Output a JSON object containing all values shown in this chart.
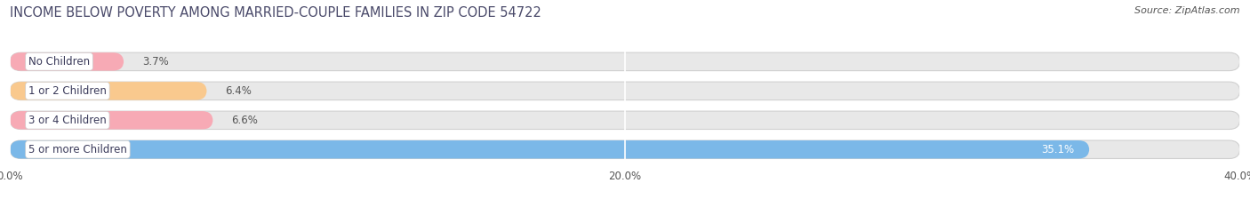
{
  "title": "INCOME BELOW POVERTY AMONG MARRIED-COUPLE FAMILIES IN ZIP CODE 54722",
  "source": "Source: ZipAtlas.com",
  "categories": [
    "No Children",
    "1 or 2 Children",
    "3 or 4 Children",
    "5 or more Children"
  ],
  "values": [
    3.7,
    6.4,
    6.6,
    35.1
  ],
  "bar_colors": [
    "#f7aab5",
    "#f9c98e",
    "#f7aab5",
    "#7bb8e8"
  ],
  "bar_bg_color": "#e8e8e8",
  "bar_border_color": "#d0d0d0",
  "xlim": [
    0,
    40
  ],
  "xticks": [
    0.0,
    20.0,
    40.0
  ],
  "xtick_labels": [
    "0.0%",
    "20.0%",
    "40.0%"
  ],
  "background_color": "#ffffff",
  "title_color": "#4a4a6a",
  "title_fontsize": 10.5,
  "label_fontsize": 8.5,
  "value_fontsize": 8.5,
  "source_fontsize": 8,
  "source_color": "#555555"
}
